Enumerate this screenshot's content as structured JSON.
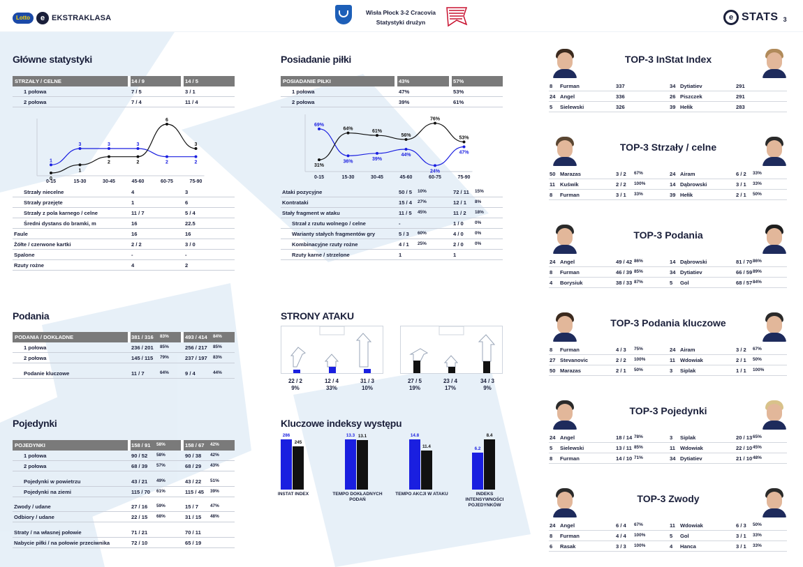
{
  "header": {
    "lotto": "Lotto",
    "league": "EKSTRAKLASA",
    "match_line1": "Wisła Płock 3-2 Cracovia",
    "match_line2": "Statystyki drużyn",
    "stats_brand": "STATS",
    "page_number": "3"
  },
  "colors": {
    "home": "#1a1fe0",
    "away": "#111111",
    "header_row": "#7a7a7a",
    "text": "#1a1f3a"
  },
  "main_stats": {
    "title": "Główne statystyki",
    "head": {
      "label": "STRZAŁY / CELNE",
      "home": "14 / 9",
      "away": "14 / 5"
    },
    "halves": [
      {
        "label": "1 połowa",
        "home": "7 / 5",
        "away": "3 / 1"
      },
      {
        "label": "2 połowa",
        "home": "7 / 4",
        "away": "11 / 4"
      }
    ],
    "rows": [
      {
        "label": "Strzały niecelne",
        "home": "4",
        "away": "3",
        "indent": true
      },
      {
        "label": "Strzały przejęte",
        "home": "1",
        "away": "6",
        "indent": true
      },
      {
        "label": "Strzały z pola karnego / celne",
        "home": "11 / 7",
        "away": "5 / 4",
        "indent": true
      },
      {
        "label": "Średni dystans do bramki, m",
        "home": "16",
        "away": "22.5",
        "indent": true
      },
      {
        "label": "Faule",
        "home": "16",
        "away": "16",
        "indent": false
      },
      {
        "label": "Żółte / czerwone kartki",
        "home": "2 / 2",
        "away": "3 / 0",
        "indent": false
      },
      {
        "label": "Spalone",
        "home": "-",
        "away": "-",
        "indent": false
      },
      {
        "label": "Rzuty rożne",
        "home": "4",
        "away": "2",
        "indent": false
      }
    ]
  },
  "shots_chart": {
    "type": "line",
    "categories": [
      "0-15",
      "15-30",
      "30-45",
      "45-60",
      "60-75",
      "75-90"
    ],
    "series": [
      {
        "values": [
          1,
          3,
          3,
          3,
          2,
          2
        ]
      },
      {
        "values": [
          0,
          1,
          2,
          2,
          6,
          3
        ]
      }
    ],
    "ylim": [
      0,
      6
    ]
  },
  "possession": {
    "title": "Posiadanie piłki",
    "head": {
      "label": "POSIADANIE PIŁKI",
      "home": "43%",
      "away": "57%"
    },
    "halves": [
      {
        "label": "1 połowa",
        "home": "47%",
        "away": "53%"
      },
      {
        "label": "2 połowa",
        "home": "39%",
        "away": "61%"
      }
    ],
    "rows": [
      {
        "label": "Ataki pozycyjne",
        "home": "50 / 5",
        "home_pct": "10%",
        "away": "72 / 11",
        "away_pct": "15%",
        "indent": false
      },
      {
        "label": "Kontrataki",
        "home": "15 / 4",
        "home_pct": "27%",
        "away": "12 / 1",
        "away_pct": "8%",
        "indent": false
      },
      {
        "label": "Stały fragment w ataku",
        "home": "11 / 5",
        "home_pct": "45%",
        "away": "11 / 2",
        "away_pct": "18%",
        "indent": false
      },
      {
        "label": "Strzał z rzutu wolnego / celne",
        "home": "-",
        "home_pct": "",
        "away": "1 / 0",
        "away_pct": "0%",
        "indent": true
      },
      {
        "label": "Warianty stałych fragmentów gry",
        "home": "5 / 3",
        "home_pct": "60%",
        "away": "4 / 0",
        "away_pct": "0%",
        "indent": true
      },
      {
        "label": "Kombinacyjne rzuty rożne",
        "home": "4 / 1",
        "home_pct": "25%",
        "away": "2 / 0",
        "away_pct": "0%",
        "indent": true
      },
      {
        "label": "Rzuty karne / strzelone",
        "home": "1",
        "home_pct": "",
        "away": "1",
        "away_pct": "",
        "indent": true
      }
    ]
  },
  "possession_chart": {
    "type": "line",
    "categories": [
      "0-15",
      "15-30",
      "30-45",
      "45-60",
      "60-75",
      "75-90"
    ],
    "series": [
      {
        "values": [
          69,
          36,
          39,
          44,
          24,
          47
        ]
      },
      {
        "values": [
          31,
          64,
          61,
          56,
          76,
          53
        ]
      }
    ],
    "ylim": [
      20,
      80
    ]
  },
  "passes": {
    "title": "Podania",
    "head": {
      "label": "PODANIA / DOKŁADNE",
      "home": "381 / 316",
      "home_pct": "83%",
      "away": "493 / 414",
      "away_pct": "84%"
    },
    "rows": [
      {
        "label": "1 połowa",
        "home": "236 / 201",
        "home_pct": "85%",
        "away": "256 / 217",
        "away_pct": "85%"
      },
      {
        "label": "2 połowa",
        "home": "145 / 115",
        "home_pct": "79%",
        "away": "237 / 197",
        "away_pct": "83%"
      },
      {
        "label": "Podanie kluczowe",
        "home": "11 / 7",
        "home_pct": "64%",
        "away": "9 / 4",
        "away_pct": "44%"
      }
    ]
  },
  "duels": {
    "title": "Pojedynki",
    "head": {
      "label": "POJEDYNKI",
      "home": "158 / 91",
      "home_pct": "58%",
      "away": "158 / 67",
      "away_pct": "42%"
    },
    "rows": [
      {
        "label": "1 połowa",
        "home": "90 / 52",
        "home_pct": "58%",
        "away": "90 / 38",
        "away_pct": "42%",
        "indent": true
      },
      {
        "label": "2 połowa",
        "home": "68 / 39",
        "home_pct": "57%",
        "away": "68 / 29",
        "away_pct": "43%",
        "indent": true
      },
      {
        "label": "Pojedynki w powietrzu",
        "home": "43 / 21",
        "home_pct": "49%",
        "away": "43 / 22",
        "away_pct": "51%",
        "indent": true
      },
      {
        "label": "Pojedynki na ziemi",
        "home": "115 / 70",
        "home_pct": "61%",
        "away": "115 / 45",
        "away_pct": "39%",
        "indent": true
      },
      {
        "label": "Zwody / udane",
        "home": "27 / 16",
        "home_pct": "59%",
        "away": "15 / 7",
        "away_pct": "47%",
        "indent": false
      },
      {
        "label": "Odbiory / udane",
        "home": "22 / 15",
        "home_pct": "68%",
        "away": "31 / 15",
        "away_pct": "48%",
        "indent": false
      },
      {
        "label": "Straty / na własnej połowie",
        "home": "71 / 21",
        "home_pct": "",
        "away": "70 / 11",
        "away_pct": "",
        "indent": false
      },
      {
        "label": "Nabycie piłki / na połowie przeciwnika",
        "home": "72 / 10",
        "home_pct": "",
        "away": "65 / 19",
        "away_pct": "",
        "indent": false
      }
    ]
  },
  "attack_sides": {
    "title": "STRONY ATAKU",
    "home": [
      {
        "value": "22 / 2",
        "pct": "9%"
      },
      {
        "value": "12 / 4",
        "pct": "33%"
      },
      {
        "value": "31 / 3",
        "pct": "10%"
      }
    ],
    "away": [
      {
        "value": "27 / 5",
        "pct": "19%"
      },
      {
        "value": "23 / 4",
        "pct": "17%"
      },
      {
        "value": "34 / 3",
        "pct": "9%"
      }
    ]
  },
  "key_indexes": {
    "title": "Kluczowe indeksy występu",
    "chart_data": {
      "type": "bar",
      "categories": [
        "INSTAT INDEX",
        "TEMPO DOKŁADNYCH PODAŃ",
        "TEMPO AKCJI W ATAKU",
        "INDEKS INTENSYWNOŚCI POJEDYNKÓW"
      ],
      "series": [
        {
          "values": [
            286,
            13.3,
            14.8,
            6.2
          ],
          "labels": [
            "286",
            "13.3",
            "14.8",
            "6.2"
          ]
        },
        {
          "values": [
            245,
            13.1,
            11.4,
            8.4
          ],
          "labels": [
            "245",
            "13.1",
            "11.4",
            "8.4"
          ]
        }
      ]
    }
  },
  "top3": [
    {
      "title": "TOP-3 InStat Index",
      "home": [
        {
          "num": "8",
          "name": "Furman",
          "value": "337",
          "pct": ""
        },
        {
          "num": "24",
          "name": "Angel",
          "value": "336",
          "pct": ""
        },
        {
          "num": "5",
          "name": "Sielewski",
          "value": "326",
          "pct": ""
        }
      ],
      "away": [
        {
          "num": "34",
          "name": "Dytiatiev",
          "value": "291",
          "pct": ""
        },
        {
          "num": "26",
          "name": "Piszczek",
          "value": "291",
          "pct": ""
        },
        {
          "num": "39",
          "name": "Hełik",
          "value": "283",
          "pct": ""
        }
      ]
    },
    {
      "title": "TOP-3 Strzały / celne",
      "home": [
        {
          "num": "50",
          "name": "Marazas",
          "value": "3 / 2",
          "pct": "67%"
        },
        {
          "num": "11",
          "name": "Kuświk",
          "value": "2 / 2",
          "pct": "100%"
        },
        {
          "num": "8",
          "name": "Furman",
          "value": "3 / 1",
          "pct": "33%"
        }
      ],
      "away": [
        {
          "num": "24",
          "name": "Airam",
          "value": "6 / 2",
          "pct": "33%"
        },
        {
          "num": "14",
          "name": "Dąbrowski",
          "value": "3 / 1",
          "pct": "33%"
        },
        {
          "num": "39",
          "name": "Hełik",
          "value": "2 / 1",
          "pct": "50%"
        }
      ]
    },
    {
      "title": "TOP-3 Podania",
      "home": [
        {
          "num": "24",
          "name": "Angel",
          "value": "49 / 42",
          "pct": "86%"
        },
        {
          "num": "8",
          "name": "Furman",
          "value": "46 / 39",
          "pct": "85%"
        },
        {
          "num": "4",
          "name": "Borysiuk",
          "value": "38 / 33",
          "pct": "87%"
        }
      ],
      "away": [
        {
          "num": "14",
          "name": "Dąbrowski",
          "value": "81 / 70",
          "pct": "86%"
        },
        {
          "num": "34",
          "name": "Dytiatiev",
          "value": "66 / 59",
          "pct": "89%"
        },
        {
          "num": "5",
          "name": "Gol",
          "value": "68 / 57",
          "pct": "84%"
        }
      ]
    },
    {
      "title": "TOP-3 Podania kluczowe",
      "home": [
        {
          "num": "8",
          "name": "Furman",
          "value": "4 / 3",
          "pct": "75%"
        },
        {
          "num": "27",
          "name": "Stevanovic",
          "value": "2 / 2",
          "pct": "100%"
        },
        {
          "num": "50",
          "name": "Marazas",
          "value": "2 / 1",
          "pct": "50%"
        }
      ],
      "away": [
        {
          "num": "24",
          "name": "Airam",
          "value": "3 / 2",
          "pct": "67%"
        },
        {
          "num": "11",
          "name": "Wdowiak",
          "value": "2 / 1",
          "pct": "50%"
        },
        {
          "num": "3",
          "name": "Siplak",
          "value": "1 / 1",
          "pct": "100%"
        }
      ]
    },
    {
      "title": "TOP-3 Pojedynki",
      "home": [
        {
          "num": "24",
          "name": "Angel",
          "value": "18 / 14",
          "pct": "78%"
        },
        {
          "num": "5",
          "name": "Sielewski",
          "value": "13 / 11",
          "pct": "85%"
        },
        {
          "num": "8",
          "name": "Furman",
          "value": "14 / 10",
          "pct": "71%"
        }
      ],
      "away": [
        {
          "num": "3",
          "name": "Siplak",
          "value": "20 / 13",
          "pct": "65%"
        },
        {
          "num": "11",
          "name": "Wdowiak",
          "value": "22 / 10",
          "pct": "45%"
        },
        {
          "num": "34",
          "name": "Dytiatiev",
          "value": "21 / 10",
          "pct": "48%"
        }
      ]
    },
    {
      "title": "TOP-3 Zwody",
      "home": [
        {
          "num": "24",
          "name": "Angel",
          "value": "6 / 4",
          "pct": "67%"
        },
        {
          "num": "8",
          "name": "Furman",
          "value": "4 / 4",
          "pct": "100%"
        },
        {
          "num": "6",
          "name": "Rasak",
          "value": "3 / 3",
          "pct": "100%"
        }
      ],
      "away": [
        {
          "num": "11",
          "name": "Wdowiak",
          "value": "6 / 3",
          "pct": "50%"
        },
        {
          "num": "5",
          "name": "Gol",
          "value": "3 / 1",
          "pct": "33%"
        },
        {
          "num": "4",
          "name": "Hanca",
          "value": "3 / 1",
          "pct": "33%"
        }
      ]
    }
  ]
}
